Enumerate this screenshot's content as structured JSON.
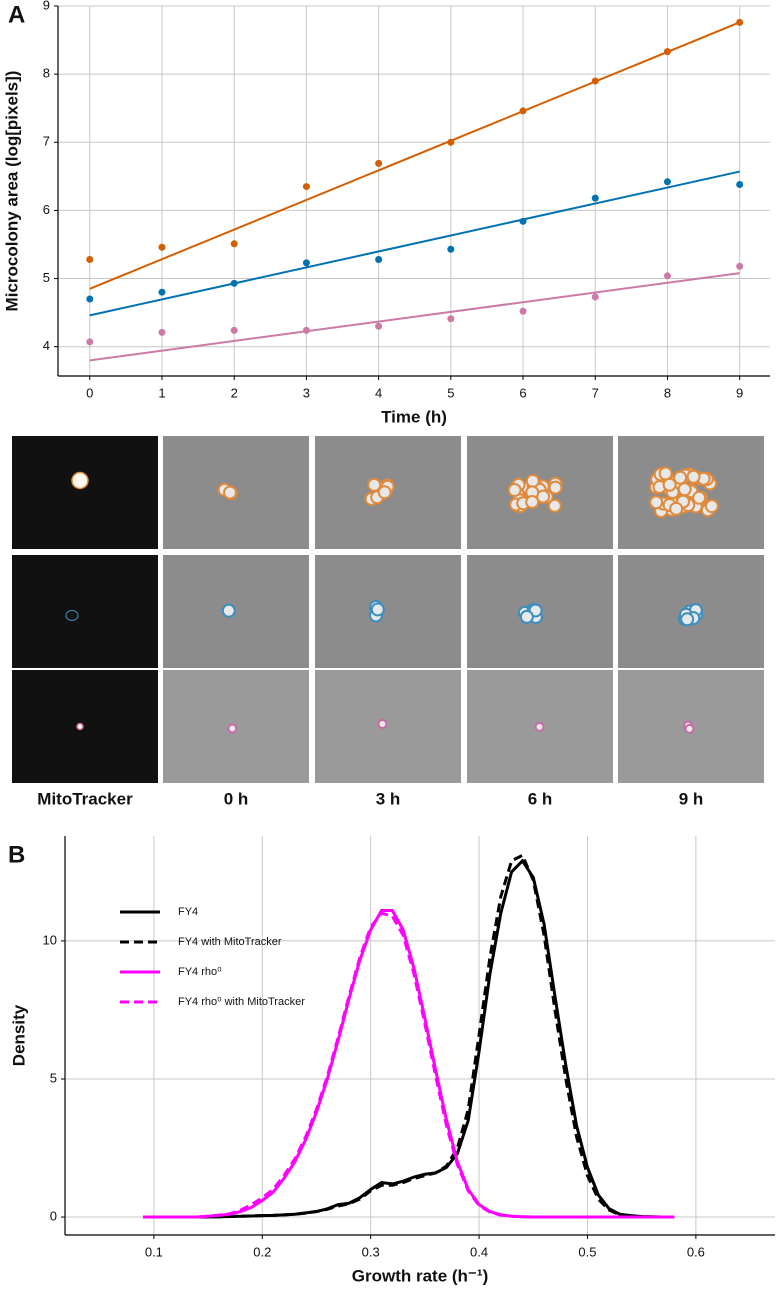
{
  "chart_data": [
    {
      "type": "scatter",
      "panel": "A",
      "xlabel": "Time  (h)",
      "ylabel": "Microcolony area  (log[pixels])",
      "x": [
        0,
        1,
        2,
        3,
        4,
        5,
        6,
        7,
        8,
        9
      ],
      "fit_x": [
        0,
        9
      ],
      "series": [
        {
          "color": "#d55e00",
          "values": [
            5.28,
            5.46,
            5.51,
            6.35,
            6.69,
            7.0,
            7.46,
            7.9,
            8.33,
            8.76
          ],
          "fit_values": [
            4.85,
            8.76
          ]
        },
        {
          "color": "#0072b2",
          "values": [
            4.7,
            4.8,
            4.93,
            5.23,
            5.28,
            5.43,
            5.84,
            6.18,
            6.42,
            6.38
          ],
          "fit_values": [
            4.46,
            6.57
          ]
        },
        {
          "color": "#cc79a7",
          "values": [
            4.07,
            4.21,
            4.24,
            4.24,
            4.3,
            4.41,
            4.52,
            4.73,
            5.04,
            5.18
          ],
          "fit_values": [
            3.8,
            5.08
          ]
        }
      ],
      "xlim": [
        -0.44,
        9.42
      ],
      "ylim": [
        3.57,
        9.0
      ],
      "xticks": [
        0,
        1,
        2,
        3,
        4,
        5,
        6,
        7,
        8,
        9
      ],
      "yticks": [
        4,
        5,
        6,
        7,
        8,
        9
      ],
      "grid": true
    },
    {
      "type": "line",
      "panel": "B",
      "xlabel": "Growth rate  (h⁻¹)",
      "ylabel": "Density",
      "x": [
        0.09,
        0.1,
        0.11,
        0.12,
        0.13,
        0.14,
        0.15,
        0.16,
        0.17,
        0.18,
        0.19,
        0.2,
        0.21,
        0.22,
        0.23,
        0.24,
        0.25,
        0.26,
        0.27,
        0.28,
        0.29,
        0.3,
        0.31,
        0.32,
        0.33,
        0.34,
        0.35,
        0.36,
        0.37,
        0.38,
        0.39,
        0.4,
        0.41,
        0.42,
        0.43,
        0.44,
        0.45,
        0.46,
        0.47,
        0.48,
        0.49,
        0.5,
        0.51,
        0.52,
        0.53,
        0.54,
        0.55,
        0.56,
        0.57,
        0.58
      ],
      "series": [
        {
          "name": "FY4",
          "color": "#000000",
          "linestyle": "solid",
          "values": [
            0,
            0,
            0,
            0,
            0,
            0,
            0,
            0.01,
            0.02,
            0.03,
            0.04,
            0.05,
            0.06,
            0.08,
            0.1,
            0.15,
            0.2,
            0.3,
            0.45,
            0.5,
            0.7,
            1.0,
            1.25,
            1.2,
            1.3,
            1.45,
            1.55,
            1.6,
            1.8,
            2.3,
            3.5,
            6.0,
            8.8,
            11.0,
            12.5,
            12.9,
            12.3,
            10.6,
            8.0,
            5.5,
            3.3,
            1.8,
            0.8,
            0.3,
            0.1,
            0.05,
            0.02,
            0.01,
            0,
            0
          ]
        },
        {
          "name": "FY4 with MitoTracker",
          "color": "#000000",
          "linestyle": "dashed",
          "values": [
            0,
            0,
            0,
            0,
            0,
            0,
            0,
            0.01,
            0.02,
            0.03,
            0.04,
            0.05,
            0.06,
            0.08,
            0.1,
            0.14,
            0.2,
            0.28,
            0.4,
            0.48,
            0.65,
            0.95,
            1.15,
            1.15,
            1.25,
            1.4,
            1.5,
            1.6,
            1.85,
            2.5,
            3.9,
            6.6,
            9.4,
            11.6,
            12.9,
            13.1,
            12.2,
            10.2,
            7.5,
            5.0,
            2.9,
            1.5,
            0.65,
            0.25,
            0.08,
            0.03,
            0.01,
            0,
            0,
            0
          ]
        },
        {
          "name": "FY4 rho⁰",
          "color": "#ff00ff",
          "linestyle": "solid",
          "values": [
            0,
            0,
            0,
            0,
            0,
            0,
            0.03,
            0.06,
            0.1,
            0.2,
            0.35,
            0.6,
            0.9,
            1.4,
            2.0,
            2.8,
            3.8,
            5.0,
            6.4,
            7.9,
            9.3,
            10.4,
            11.1,
            11.1,
            10.4,
            9.0,
            7.2,
            5.3,
            3.5,
            2.0,
            1.0,
            0.45,
            0.2,
            0.08,
            0.03,
            0.01,
            0,
            0,
            0,
            0,
            0,
            0,
            0,
            0,
            0,
            0,
            0,
            0,
            0,
            0
          ]
        },
        {
          "name": "FY4 rho⁰ with MitoTracker",
          "color": "#ff00ff",
          "linestyle": "dashed",
          "values": [
            0,
            0,
            0,
            0,
            0,
            0,
            0.03,
            0.07,
            0.12,
            0.25,
            0.45,
            0.7,
            1.0,
            1.5,
            2.1,
            2.9,
            3.9,
            5.1,
            6.5,
            8.0,
            9.4,
            10.5,
            11.0,
            10.9,
            10.2,
            8.8,
            7.0,
            5.1,
            3.3,
            1.9,
            0.95,
            0.42,
            0.18,
            0.07,
            0.03,
            0.01,
            0,
            0,
            0,
            0,
            0,
            0,
            0,
            0,
            0,
            0,
            0,
            0,
            0,
            0
          ]
        }
      ],
      "xlim": [
        0.018,
        0.673
      ],
      "ylim": [
        -0.65,
        13.8
      ],
      "xticks": [
        0.1,
        0.2,
        0.3,
        0.4,
        0.5,
        0.6
      ],
      "yticks": [
        0,
        5,
        10
      ],
      "grid": true,
      "legend": "upper left"
    }
  ],
  "image_grid": {
    "labels": [
      "MitoTracker",
      "0 h",
      "3 h",
      "6 h",
      "9 h"
    ]
  }
}
